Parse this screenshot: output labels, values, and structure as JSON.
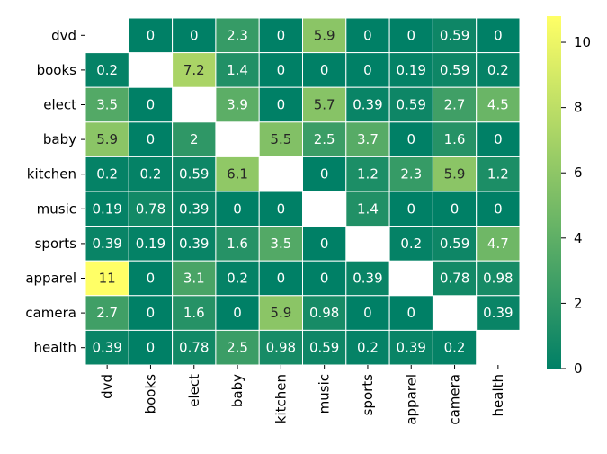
{
  "chart_data": {
    "type": "heatmap",
    "rows": [
      "dvd",
      "books",
      "elect",
      "baby",
      "kitchen",
      "music",
      "sports",
      "apparel",
      "camera",
      "health"
    ],
    "columns": [
      "dvd",
      "books",
      "elect",
      "baby",
      "kitchen",
      "music",
      "sports",
      "apparel",
      "camera",
      "health"
    ],
    "values": [
      [
        null,
        0,
        0,
        2.3,
        0,
        5.9,
        0,
        0,
        0.59,
        0
      ],
      [
        0.2,
        null,
        7.2,
        1.4,
        0,
        0,
        0,
        0.19,
        0.59,
        0.2
      ],
      [
        3.5,
        0,
        null,
        3.9,
        0,
        5.7,
        0.39,
        0.59,
        2.7,
        4.5
      ],
      [
        5.9,
        0,
        2,
        null,
        5.5,
        2.5,
        3.7,
        0,
        1.6,
        0
      ],
      [
        0.2,
        0.2,
        0.59,
        6.1,
        null,
        0,
        1.2,
        2.3,
        5.9,
        1.2
      ],
      [
        0.19,
        0.78,
        0.39,
        0,
        0,
        null,
        1.4,
        0,
        0,
        0
      ],
      [
        0.39,
        0.19,
        0.39,
        1.6,
        3.5,
        0,
        null,
        0.2,
        0.59,
        4.7
      ],
      [
        11,
        0,
        3.1,
        0.2,
        0,
        0,
        0.39,
        null,
        0.78,
        0.98
      ],
      [
        2.7,
        0,
        1.6,
        0,
        5.9,
        0.98,
        0,
        0,
        null,
        0.39
      ],
      [
        0.39,
        0,
        0.78,
        2.5,
        0.98,
        0.59,
        0.2,
        0.39,
        0.2,
        null
      ]
    ],
    "colorbar": {
      "min": 0,
      "max": 10.8,
      "ticks": [
        "0",
        "2",
        "4",
        "6",
        "8",
        "10"
      ],
      "colormap": "summer"
    },
    "title": "",
    "xlabel": "",
    "ylabel": ""
  }
}
